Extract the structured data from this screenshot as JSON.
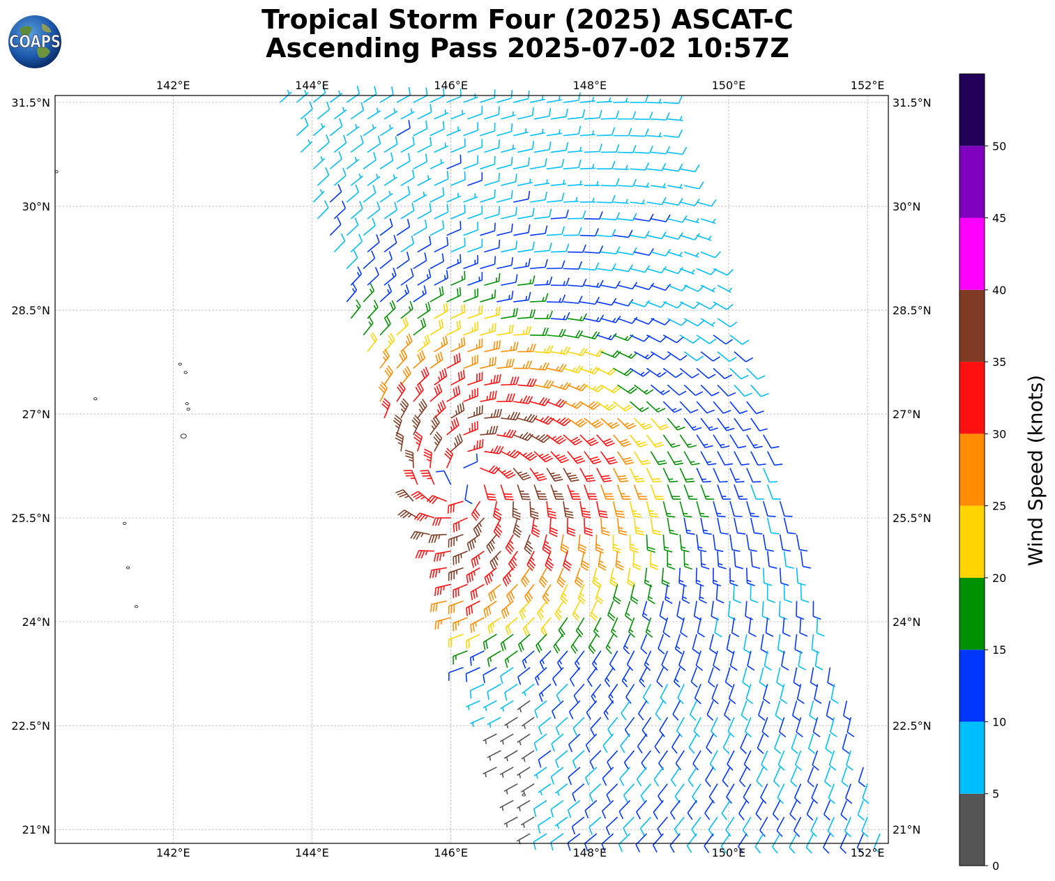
{
  "title": {
    "line1": "Tropical Storm Four (2025) ASCAT-C",
    "line2": "Ascending Pass 2025-07-02 10:57Z"
  },
  "logo": {
    "text": "COAPS",
    "icon": "globe-logo-icon"
  },
  "map": {
    "lon_range": [
      140.3,
      152.3
    ],
    "lat_range": [
      20.8,
      31.6
    ],
    "lon_ticks": [
      "142°E",
      "144°E",
      "146°E",
      "148°E",
      "150°E",
      "152°E"
    ],
    "lat_ticks": [
      "31.5°N",
      "30°N",
      "28.5°N",
      "27°N",
      "25.5°N",
      "24°N",
      "22.5°N",
      "21°N"
    ],
    "gridlines": true,
    "storm_center": {
      "lon": 146.2,
      "lat": 26.0
    }
  },
  "colorbar": {
    "label": "Wind Speed (knots)",
    "ticks": [
      "0",
      "5",
      "10",
      "15",
      "20",
      "25",
      "30",
      "35",
      "40",
      "45",
      "50"
    ],
    "colors": [
      "#555555",
      "#00bfff",
      "#0037ff",
      "#009100",
      "#ffd500",
      "#ff8c00",
      "#ff1010",
      "#7f3b23",
      "#ff00ff",
      "#8000bf",
      "#220059"
    ]
  }
}
